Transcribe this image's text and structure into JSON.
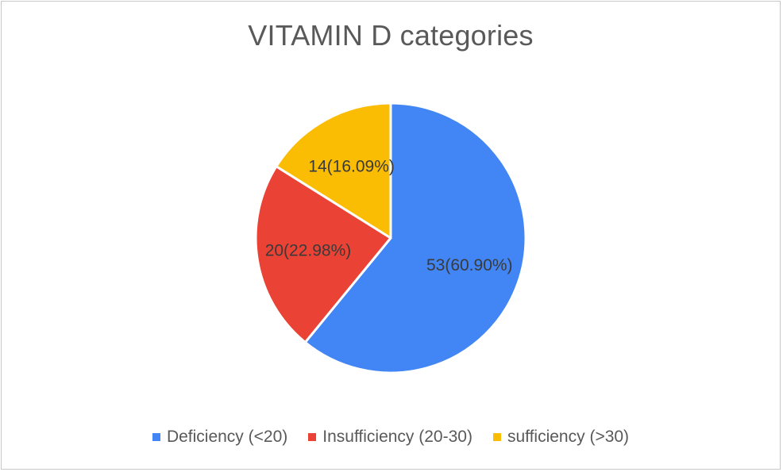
{
  "chart_data": {
    "type": "pie",
    "title": "VITAMIN D categories",
    "categories": [
      "Deficiency (<20)",
      "Insufficiency (20-30)",
      "sufficiency (>30)"
    ],
    "values": [
      53,
      20,
      14
    ],
    "percentages": [
      60.9,
      22.98,
      16.09
    ],
    "data_labels": [
      "53(60.90%)",
      "20(22.98%)",
      "14(16.09%)"
    ],
    "colors": [
      "#4285F4",
      "#EA4335",
      "#FBBC04"
    ],
    "legend_position": "bottom",
    "start_angle": "12 o'clock",
    "direction": "clockwise"
  }
}
